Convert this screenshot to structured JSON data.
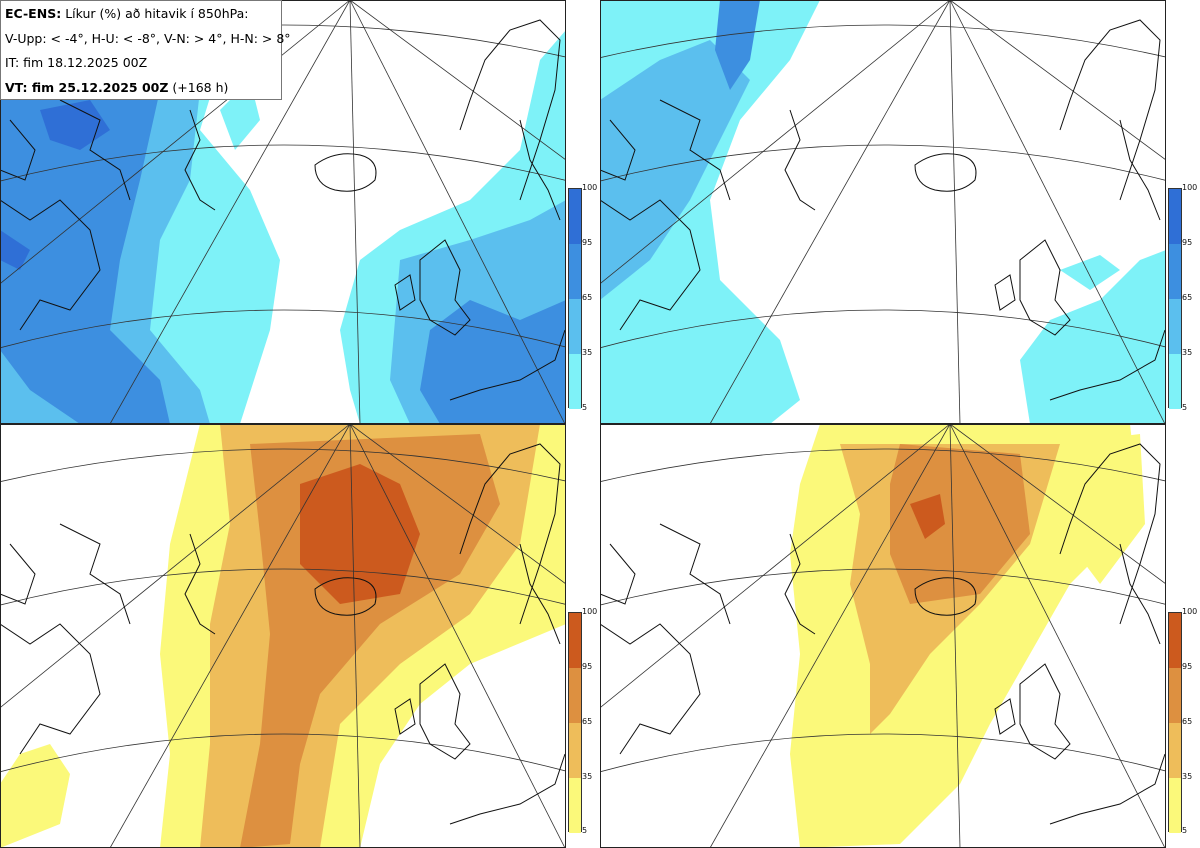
{
  "header": {
    "model": "EC-ENS:",
    "title": "Líkur (%) að hitavik í 850hPa:",
    "thresholds": "V-Upp: < -4°, H-U: < -8°, V-N: > 4°, H-N: > 8°",
    "init_time": "IT: fim 18.12.2025 00Z",
    "valid_label": "VT: fim 25.12.2025 00Z",
    "lead": "(+168 h)"
  },
  "panels": [
    {
      "id": "V-Upp",
      "threshold": "< -4°",
      "scale": "blue"
    },
    {
      "id": "H-U",
      "threshold": "< -8°",
      "scale": "blue"
    },
    {
      "id": "V-N",
      "threshold": "> 4°",
      "scale": "warm"
    },
    {
      "id": "H-N",
      "threshold": "> 8°",
      "scale": "warm"
    }
  ],
  "colorbar": {
    "ticks": [
      "100",
      "95",
      "65",
      "35",
      "5"
    ],
    "blue_colors": [
      "#2f6fd6",
      "#3d8fe0",
      "#5bbfee",
      "#7ef2f8"
    ],
    "warm_colors": [
      "#cc5a1e",
      "#dd9040",
      "#eebd5a",
      "#fbf97a"
    ]
  },
  "map_labels": {
    "title_note": ""
  }
}
